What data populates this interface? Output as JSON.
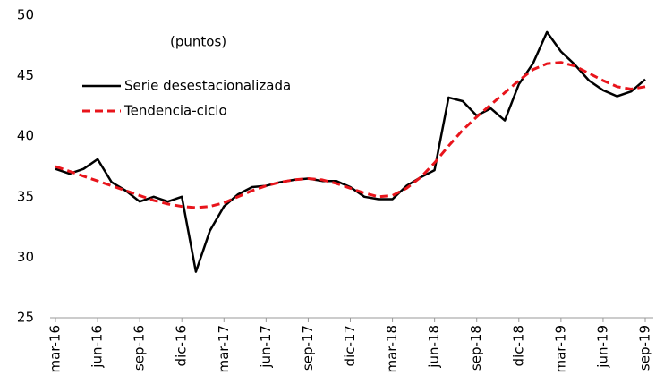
{
  "chart_data": {
    "type": "line",
    "annotations": [
      "(puntos)"
    ],
    "categories": [
      "mar-16",
      null,
      null,
      "jun-16",
      null,
      null,
      "sep-16",
      null,
      null,
      "dic-16",
      null,
      null,
      "mar-17",
      null,
      null,
      "jun-17",
      null,
      null,
      "sep-17",
      null,
      null,
      "dic-17",
      null,
      null,
      "mar-18",
      null,
      null,
      "jun-18",
      null,
      null,
      "sep-18",
      null,
      null,
      "dic-18",
      null,
      null,
      "mar-19",
      null,
      null,
      "jun-19",
      null,
      null,
      "sep-19"
    ],
    "series": [
      {
        "name": "Serie desestacionalizada",
        "color": "#000000",
        "dash": "solid",
        "values": [
          37.3,
          36.9,
          37.3,
          38.1,
          36.2,
          35.5,
          34.6,
          35.0,
          34.6,
          35.0,
          28.8,
          32.2,
          34.2,
          35.2,
          35.8,
          35.9,
          36.2,
          36.4,
          36.5,
          36.3,
          36.3,
          35.8,
          35.0,
          34.8,
          34.8,
          35.9,
          36.6,
          37.2,
          43.2,
          42.9,
          41.7,
          42.3,
          41.3,
          44.3,
          46.0,
          48.6,
          47.0,
          45.9,
          44.6,
          43.8,
          43.3,
          43.7,
          44.7
        ]
      },
      {
        "name": "Tendencia-ciclo",
        "color": "#e8141b",
        "dash": "dashed",
        "values": [
          37.5,
          37.1,
          36.7,
          36.3,
          35.9,
          35.5,
          35.1,
          34.7,
          34.4,
          34.2,
          34.1,
          34.2,
          34.5,
          35.0,
          35.5,
          35.9,
          36.2,
          36.4,
          36.5,
          36.4,
          36.1,
          35.7,
          35.3,
          35.0,
          35.1,
          35.7,
          36.6,
          37.8,
          39.2,
          40.5,
          41.6,
          42.6,
          43.6,
          44.6,
          45.5,
          46.0,
          46.1,
          45.8,
          45.2,
          44.6,
          44.1,
          43.9,
          44.1
        ]
      }
    ],
    "ylim": [
      25,
      50
    ],
    "yticks": [
      25,
      30,
      35,
      40,
      45,
      50
    ],
    "grid": false,
    "legend": "upper-left"
  }
}
